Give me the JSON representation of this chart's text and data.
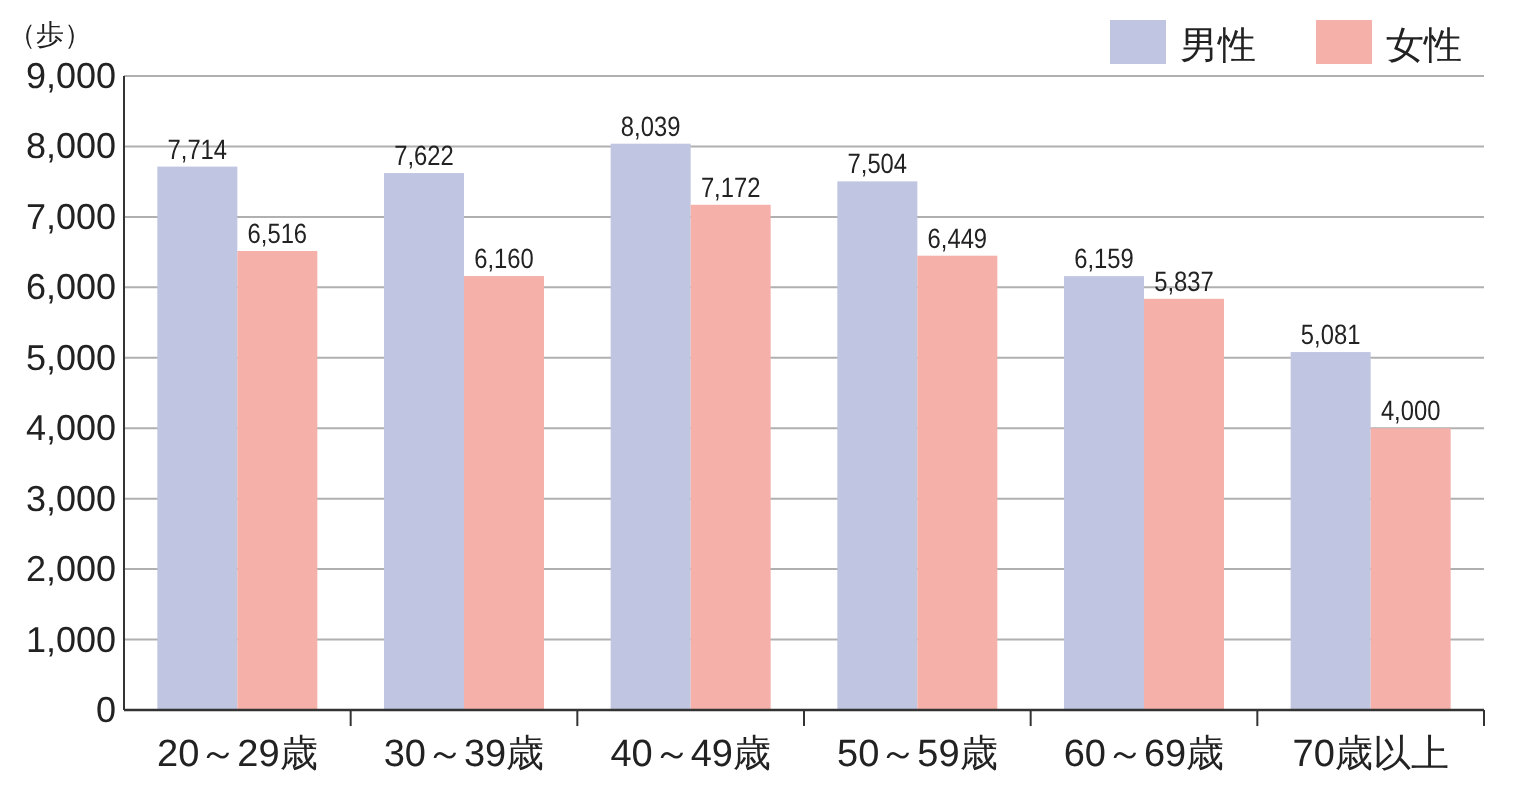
{
  "chart_data": {
    "type": "bar",
    "ylabel": "（歩）",
    "categories": [
      "20～29歳",
      "30～39歳",
      "40～49歳",
      "50～59歳",
      "60～69歳",
      "70歳以上"
    ],
    "series": [
      {
        "name": "男性",
        "color": "#c0c5e1",
        "values": [
          7714,
          7622,
          8039,
          7504,
          6159,
          5081
        ],
        "value_labels": [
          "7,714",
          "7,622",
          "8,039",
          "7,504",
          "6,159",
          "5,081"
        ]
      },
      {
        "name": "女性",
        "color": "#f4b0a9",
        "values": [
          6516,
          6160,
          7172,
          6449,
          5837,
          4000
        ],
        "value_labels": [
          "6,516",
          "6,160",
          "7,172",
          "6,449",
          "5,837",
          "4,000"
        ]
      }
    ],
    "ylim": [
      0,
      9000
    ],
    "yticks": [
      0,
      {
        "value": 1000,
        "label": "1,000"
      },
      {
        "value": 2000,
        "label": "2,000"
      },
      {
        "value": 3000,
        "label": "3,000"
      },
      {
        "value": 4000,
        "label": "4,000"
      },
      {
        "value": 5000,
        "label": "5,000"
      },
      {
        "value": 6000,
        "label": "6,000"
      },
      {
        "value": 7000,
        "label": "7,000"
      },
      {
        "value": 8000,
        "label": "8,000"
      },
      {
        "value": 9000,
        "label": "9,000"
      }
    ],
    "grid": "y",
    "legend": "top right"
  }
}
